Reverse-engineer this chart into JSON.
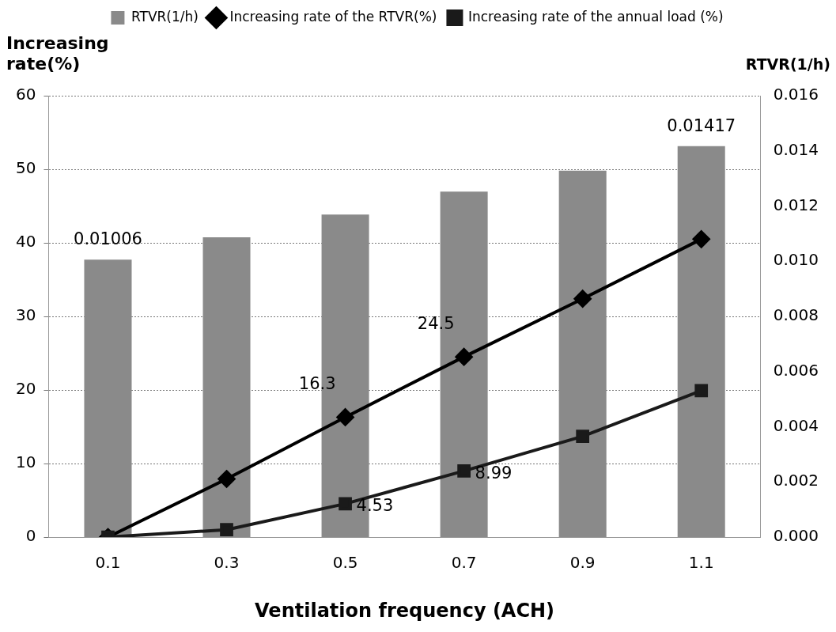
{
  "chart_data": {
    "type": "bar",
    "xlabel": "Ventilation frequency (ACH)",
    "ylabel": "Increasing rate(%)",
    "y2label": "RTVR(1/h)",
    "categories": [
      "0.1",
      "0.3",
      "0.5",
      "0.7",
      "0.9",
      "1.1"
    ],
    "series": [
      {
        "name": "RTVR(1/h)",
        "axis": "y2",
        "color": "#8a8a8a",
        "values": [
          0.01006,
          0.01087,
          0.01169,
          0.01252,
          0.01328,
          0.01417
        ],
        "value_labels": [
          "0.01006",
          null,
          null,
          null,
          null,
          "0.01417"
        ]
      },
      {
        "name": "Increasing rate of the RTVR(%)",
        "type": "line",
        "color": "#000000",
        "marker": "diamond",
        "values": [
          0,
          7.9,
          16.3,
          24.5,
          32.4,
          40.5
        ],
        "value_labels": [
          null,
          null,
          "16.3",
          "24.5",
          null,
          null
        ]
      },
      {
        "name": "Increasing rate of the annual load (%)",
        "type": "line",
        "color": "#1a1a1a",
        "marker": "square",
        "values": [
          0,
          1,
          4.53,
          8.99,
          13.7,
          19.9
        ],
        "value_labels": [
          null,
          null,
          "4.53",
          "8.99",
          null,
          null
        ]
      }
    ],
    "ylim": [
      0,
      60
    ],
    "yticks": [
      0,
      10,
      20,
      30,
      40,
      50,
      60
    ],
    "y2lim": [
      0,
      0.016
    ],
    "y2ticks": [
      {
        "value": 0,
        "label": "0.000"
      },
      {
        "value": 0.002,
        "label": "0.002"
      },
      {
        "value": 0.004,
        "label": "0.004"
      },
      {
        "value": 0.006,
        "label": "0.006"
      },
      {
        "value": 0.008,
        "label": "0.008"
      },
      {
        "value": 0.01,
        "label": "0.010"
      },
      {
        "value": 0.012,
        "label": "0.012"
      },
      {
        "value": 0.014,
        "label": "0.014"
      },
      {
        "value": 0.016,
        "label": "0.016"
      }
    ],
    "grid": "y",
    "legend": "top"
  }
}
